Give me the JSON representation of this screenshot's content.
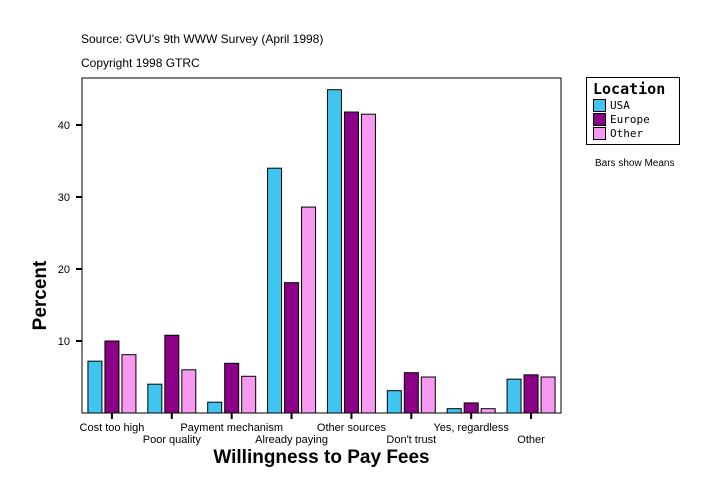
{
  "header": {
    "source": "Source: GVU's 9th WWW Survey (April 1998)",
    "copyright": "Copyright 1998 GTRC"
  },
  "note": "Bars show Means",
  "chart_data": {
    "type": "bar",
    "xlabel": "Willingness to Pay Fees",
    "ylabel": "Percent",
    "ylim": [
      0,
      47
    ],
    "yticks": [
      10,
      20,
      30,
      40
    ],
    "categories": [
      "Cost too high",
      "Poor quality",
      "Payment mechanism",
      "Already paying",
      "Other sources",
      "Don't trust",
      "Yes, regardless",
      "Other"
    ],
    "legend": {
      "title": "Location",
      "placement": "right"
    },
    "series": [
      {
        "name": "USA",
        "color": "#40c4f0",
        "values": [
          7.2,
          4.0,
          1.5,
          34.0,
          44.9,
          3.1,
          0.6,
          4.7
        ]
      },
      {
        "name": "Europe",
        "color": "#8b0087",
        "values": [
          10.0,
          10.8,
          6.9,
          18.1,
          41.8,
          5.6,
          1.4,
          5.3
        ]
      },
      {
        "name": "Other",
        "color": "#f59af0",
        "values": [
          8.1,
          6.0,
          5.1,
          28.6,
          41.5,
          5.0,
          0.6,
          5.0
        ]
      }
    ]
  }
}
